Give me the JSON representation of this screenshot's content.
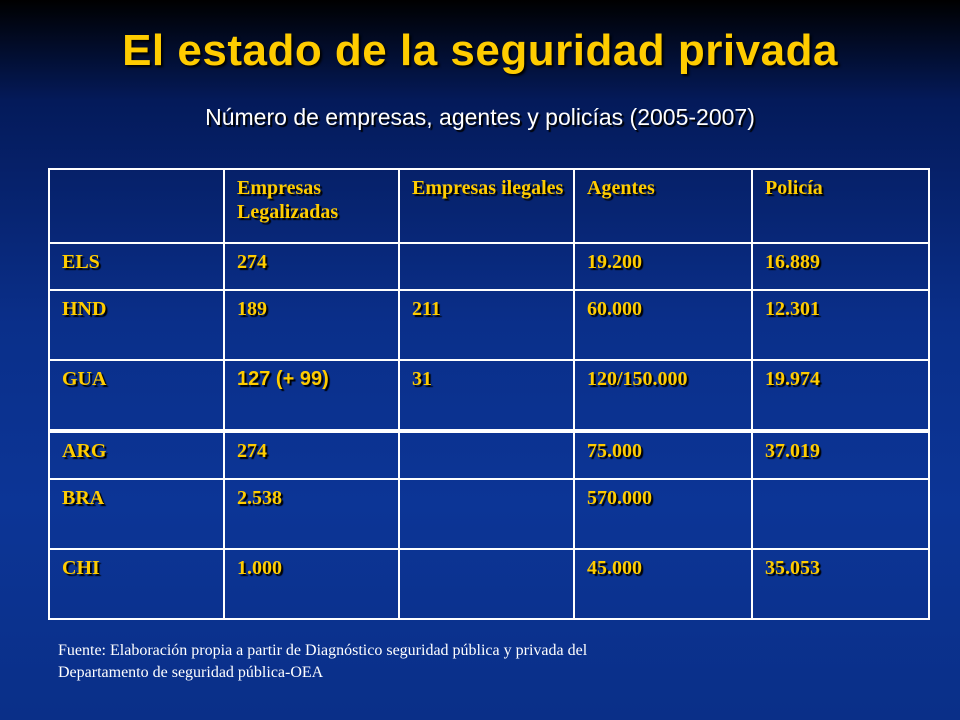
{
  "title": "El estado de la seguridad privada",
  "subtitle": "Número de empresas, agentes y policías (2005-2007)",
  "table": {
    "headers": [
      "",
      "Empresas Legalizadas",
      "Empresas ilegales",
      "Agentes",
      "Policía"
    ],
    "rows_top": [
      {
        "country": "ELS",
        "legal": "274",
        "illegal": "",
        "agents": "19.200",
        "police": "16.889"
      },
      {
        "country": "HND",
        "legal": "189",
        "illegal": "211",
        "agents": "60.000",
        "police": "12.301"
      },
      {
        "country": "GUA",
        "legal": "127 (+ 99)",
        "illegal": "31",
        "agents": "120/150.000",
        "police": "19.974"
      }
    ],
    "rows_bottom": [
      {
        "country": "ARG",
        "legal": "274",
        "illegal": "",
        "agents": "75.000",
        "police": "37.019"
      },
      {
        "country": "BRA",
        "legal": "2.538",
        "illegal": "",
        "agents": "570.000",
        "police": ""
      },
      {
        "country": "CHI",
        "legal": "1.000",
        "illegal": "",
        "agents": "45.000",
        "police": "35.053"
      }
    ]
  },
  "source_line1": "Fuente: Elaboración propia a partir de Diagnóstico seguridad pública y privada del",
  "source_line2": "Departamento de seguridad pública-OEA"
}
